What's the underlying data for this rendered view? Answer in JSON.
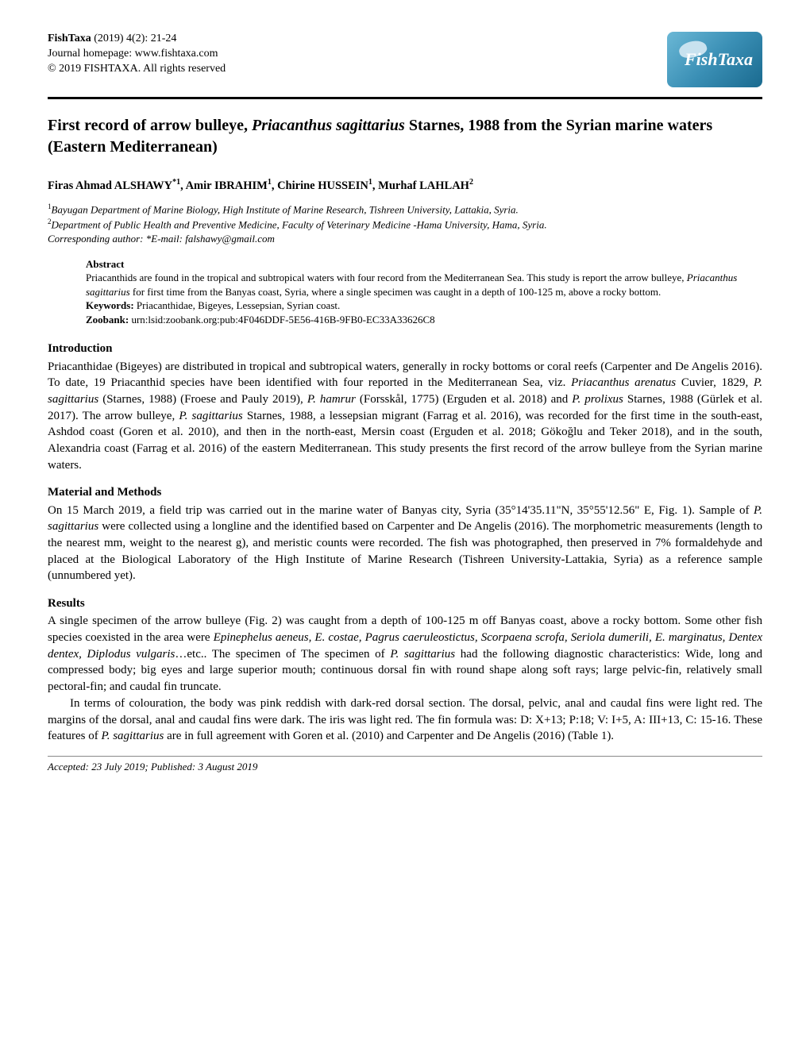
{
  "header": {
    "journal_name": "FishTaxa",
    "issue": " (2019) 4(2): 21-24",
    "homepage": "Journal homepage: www.fishtaxa.com",
    "copyright": "© 2019 FISHTAXA. All rights reserved",
    "logo_text": "FishTaxa"
  },
  "title_pre": "First record of arrow bulleye, ",
  "title_species": "Priacanthus sagittarius",
  "title_post": " Starnes, 1988 from the Syrian marine waters (Eastern Mediterranean)",
  "authors": {
    "a1_name": "Firas Ahmad ALSHAWY",
    "a1_sup": "*1",
    "a2_name": "Amir IBRAHIM",
    "a2_sup": "1",
    "a3_name": "Chirine HUSSEIN",
    "a3_sup": "1",
    "a4_name": "Murhaf LAHLAH",
    "a4_sup": "2"
  },
  "affiliations": {
    "aff1_sup": "1",
    "aff1": "Bayugan Department of Marine Biology, High Institute of Marine Research, Tishreen University, Lattakia, Syria.",
    "aff2_sup": "2",
    "aff2": "Department of Public Health and Preventive Medicine, Faculty of Veterinary Medicine -Hama University, Hama, Syria.",
    "corr": "Corresponding author: *E-mail: falshawy@gmail.com"
  },
  "abstract": {
    "label": "Abstract",
    "text_pre": "Priacanthids are found in the tropical and subtropical waters with four record from the Mediterranean Sea. This study is report the arrow bulleye, ",
    "species": "Priacanthus sagittarius",
    "text_post": " for first time from the Banyas coast, Syria, where a single specimen was caught in a depth of 100-125 m, above a rocky bottom.",
    "keywords_label": "Keywords:",
    "keywords": " Priacanthidae, Bigeyes, Lessepsian, Syrian coast.",
    "zoobank_label": "Zoobank:",
    "zoobank": " urn:lsid:zoobank.org:pub:4F046DDF-5E56-416B-9FB0-EC33A33626C8"
  },
  "intro": {
    "heading": "Introduction",
    "p1a": "Priacanthidae (Bigeyes) are distributed in tropical and subtropical waters, generally in rocky bottoms or coral reefs (Carpenter and De Angelis 2016). To date, 19 Priacanthid species have been identified with four reported in the Mediterranean Sea, viz. ",
    "sp1": "Priacanthus arenatus",
    "p1b": " Cuvier, 1829, ",
    "sp2": "P. sagittarius",
    "p1c": " (Starnes, 1988) (Froese and Pauly 2019), ",
    "sp3": "P. hamrur",
    "p1d": " (Forsskål, 1775) (Erguden et al. 2018) and ",
    "sp4": "P. prolixus",
    "p1e": " Starnes, 1988 (Gürlek et al. 2017). The arrow bulleye, ",
    "sp5": "P. sagittarius",
    "p1f": " Starnes, 1988, a lessepsian migrant (Farrag et al. 2016), was recorded for the first time in the south-east, Ashdod coast (Goren et al. 2010), and then in the north-east, Mersin coast (Erguden et al. 2018; Gökoğlu and Teker 2018), and in the south, Alexandria coast (Farrag et al. 2016) of the eastern Mediterranean. This study presents the first record of the arrow bulleye from the Syrian marine waters."
  },
  "methods": {
    "heading": "Material and Methods",
    "p1a": "On 15 March 2019, a field trip was carried out in the marine water of Banyas city, Syria (35°14'35.11\"N, 35°55'12.56\" E, Fig. 1). Sample of ",
    "sp1": "P. sagittarius",
    "p1b": " were collected using a longline and the identified based on Carpenter and De Angelis (2016). The morphometric measurements (length to the nearest mm, weight to the nearest g), and meristic counts were recorded. The fish was photographed, then preserved in 7% formaldehyde and placed at the Biological Laboratory of the High Institute of Marine Research (Tishreen University-Lattakia, Syria) as a reference sample (unnumbered yet)."
  },
  "results": {
    "heading": "Results",
    "p1a": "A single specimen of the arrow bulleye (Fig. 2) was caught from a depth of 100-125 m off Banyas coast, above a rocky bottom. Some other fish species coexisted in the area were ",
    "sp_list": "Epinephelus aeneus, E. costae, Pagrus caeruleostictus, Scorpaena scrofa, Seriola dumerili, E. marginatus, Dentex dentex, Diplodus vulgaris",
    "p1b": "…etc.",
    "p1c": ". The specimen of ",
    "sp1": "P. sagittarius",
    "p1d": " had the following diagnostic characteristics: Wide, long and compressed body; big eyes and large superior mouth; continuous dorsal fin with round shape along soft rays; large pelvic-fin, relatively small pectoral-fin; and caudal fin truncate.",
    "p2a": "In terms of colouration, the body was pink reddish with dark-red dorsal section. The dorsal, pelvic, anal and caudal fins were light red. The margins of the dorsal, anal and caudal fins were dark. The iris was light red. The fin formula was: D: X+13; P:18; V: I+5, A: III+13, C: 15-16. These features of ",
    "sp2": "P. sagittarius",
    "p2b": " are in full agreement with Goren et al. (2010) and Carpenter and De Angelis (2016) (Table 1)."
  },
  "footer": "Accepted: 23 July 2019; Published: 3 August 2019"
}
